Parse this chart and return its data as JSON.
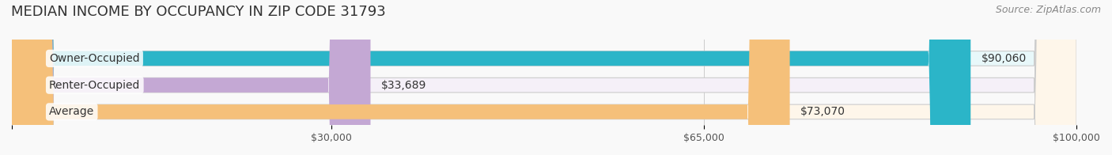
{
  "title": "MEDIAN INCOME BY OCCUPANCY IN ZIP CODE 31793",
  "source": "Source: ZipAtlas.com",
  "categories": [
    "Owner-Occupied",
    "Renter-Occupied",
    "Average"
  ],
  "values": [
    90060,
    33689,
    73070
  ],
  "labels": [
    "$90,060",
    "$33,689",
    "$73,070"
  ],
  "bar_colors": [
    "#2bb5c8",
    "#c4a8d4",
    "#f5c07a"
  ],
  "bar_bg_colors": [
    "#e8f8fa",
    "#f5f0f8",
    "#fef6ea"
  ],
  "xmax": 100000,
  "xticks": [
    0,
    30000,
    65000,
    100000
  ],
  "xticklabels": [
    "",
    "$30,000",
    "$65,000",
    "$100,000"
  ],
  "title_fontsize": 13,
  "source_fontsize": 9,
  "label_fontsize": 10,
  "tick_fontsize": 9,
  "background_color": "#f9f9f9"
}
